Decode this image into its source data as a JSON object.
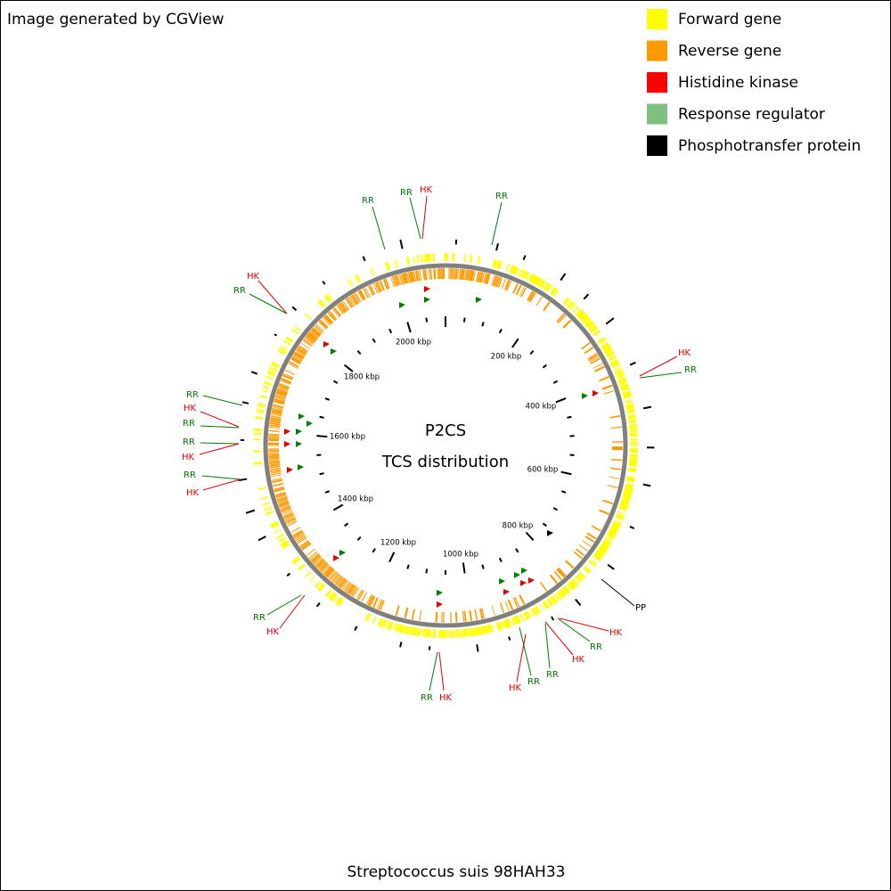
{
  "header": {
    "credit": "Image generated by CGView"
  },
  "legend": [
    {
      "label": "Forward gene",
      "color": "#ffff00"
    },
    {
      "label": "Reverse gene",
      "color": "#ff9900"
    },
    {
      "label": "Histidine kinase",
      "color": "#ff0000"
    },
    {
      "label": "Response regulator",
      "color": "#7fbf7f"
    },
    {
      "label": "Phosphotransfer protein",
      "color": "#000000"
    }
  ],
  "center": {
    "title": "P2CS",
    "subtitle": "TCS distribution"
  },
  "scale_labels": [
    "200 kbp",
    "400 kbp",
    "600 kbp",
    "800 kbp",
    "1000 kbp",
    "1200 kbp",
    "1400 kbp",
    "1600 kbp",
    "1800 kbp",
    "2000 kbp"
  ],
  "features": [
    {
      "label": "RR",
      "color": "#007a00"
    },
    {
      "label": "RR",
      "color": "#007a00"
    },
    {
      "label": "HK",
      "color": "#e00000"
    },
    {
      "label": "RR",
      "color": "#007a00"
    },
    {
      "label": "HK",
      "color": "#e00000"
    },
    {
      "label": "RR",
      "color": "#007a00"
    },
    {
      "label": "HK",
      "color": "#e00000"
    },
    {
      "label": "RR",
      "color": "#007a00"
    },
    {
      "label": "RR",
      "color": "#007a00"
    },
    {
      "label": "HK",
      "color": "#e00000"
    },
    {
      "label": "RR",
      "color": "#007a00"
    },
    {
      "label": "RR",
      "color": "#007a00"
    },
    {
      "label": "HK",
      "color": "#e00000"
    },
    {
      "label": "RR",
      "color": "#007a00"
    },
    {
      "label": "HK",
      "color": "#e00000"
    },
    {
      "label": "PP",
      "color": "#000000"
    },
    {
      "label": "HK",
      "color": "#e00000"
    },
    {
      "label": "RR",
      "color": "#007a00"
    },
    {
      "label": "HK",
      "color": "#e00000"
    },
    {
      "label": "RR",
      "color": "#007a00"
    },
    {
      "label": "RR",
      "color": "#007a00"
    },
    {
      "label": "HK",
      "color": "#e00000"
    },
    {
      "label": "RR",
      "color": "#007a00"
    },
    {
      "label": "HK",
      "color": "#e00000"
    },
    {
      "label": "RR",
      "color": "#007a00"
    },
    {
      "label": "HK",
      "color": "#e00000"
    }
  ],
  "footer": "Streptococcus suis 98HAH33"
}
